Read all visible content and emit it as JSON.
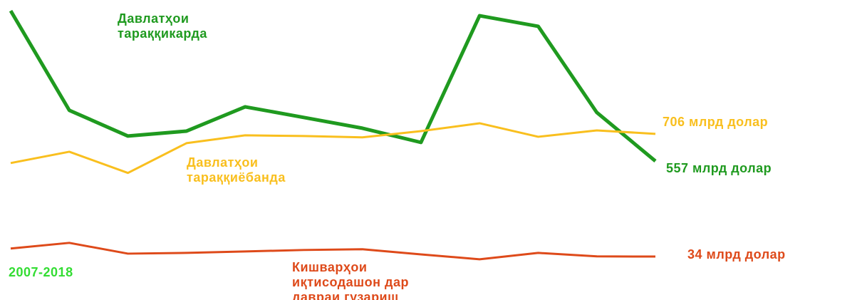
{
  "chart_data": {
    "type": "line",
    "annotation": "2007-2018",
    "categories": [
      null,
      null,
      null,
      null,
      null,
      null,
      null,
      null,
      null,
      null,
      null,
      null
    ],
    "ylim": [
      -200,
      1400
    ],
    "series": [
      {
        "name": "Давлатҳои\nтараққикарда",
        "color": "#1f9a1f",
        "end_label": "557 млрд долар",
        "values": [
          1380,
          835,
          694,
          721,
          854,
          796,
          737,
          659,
          1353,
          1295,
          823,
          557
        ]
      },
      {
        "name": "Давлатҳои\nтараққиёбанда",
        "color": "#f9bf1e",
        "end_label": "706 млрд долар",
        "values": [
          546,
          608,
          492,
          655,
          698,
          694,
          687,
          721,
          764,
          690,
          725,
          706
        ]
      },
      {
        "name": "Кишварҳои\nиқтисодашон дар\nдавраи гузариш",
        "color": "#de4a1a",
        "end_label": "34 млрд долар",
        "values": [
          78,
          109,
          50,
          54,
          62,
          70,
          74,
          46,
          19,
          54,
          35,
          34
        ]
      }
    ]
  }
}
